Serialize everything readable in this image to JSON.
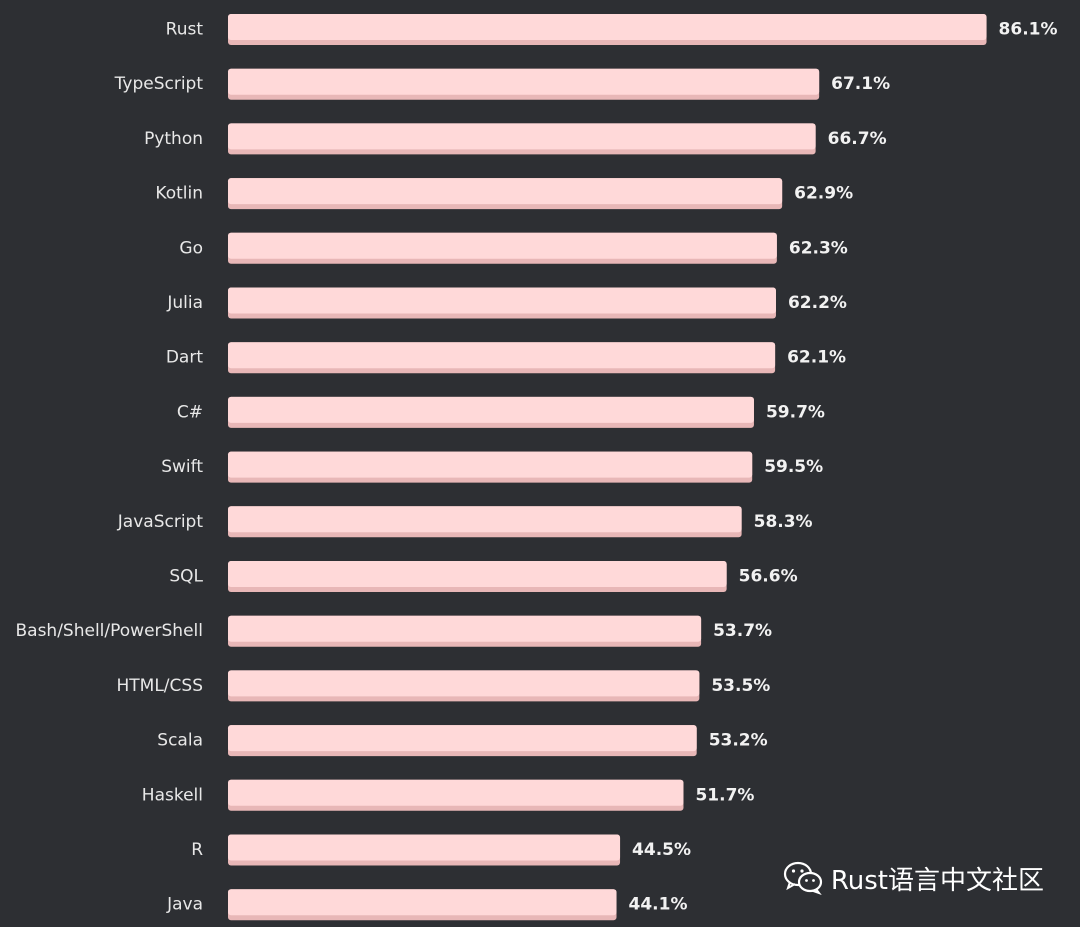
{
  "chart_data": {
    "type": "bar",
    "orientation": "horizontal",
    "categories": [
      "Rust",
      "TypeScript",
      "Python",
      "Kotlin",
      "Go",
      "Julia",
      "Dart",
      "C#",
      "Swift",
      "JavaScript",
      "SQL",
      "Bash/Shell/PowerShell",
      "HTML/CSS",
      "Scala",
      "Haskell",
      "R",
      "Java"
    ],
    "values": [
      86.1,
      67.1,
      66.7,
      62.9,
      62.3,
      62.2,
      62.1,
      59.7,
      59.5,
      58.3,
      56.6,
      53.7,
      53.5,
      53.2,
      51.7,
      44.5,
      44.1
    ],
    "value_labels": [
      "86.1%",
      "67.1%",
      "66.7%",
      "62.9%",
      "62.3%",
      "62.2%",
      "62.1%",
      "59.7%",
      "59.5%",
      "58.3%",
      "56.6%",
      "53.7%",
      "53.5%",
      "53.2%",
      "51.7%",
      "44.5%",
      "44.1%"
    ],
    "xlim": [
      0,
      100
    ],
    "grid": false,
    "bar_color": "#ffd9d9",
    "bar_shadow_color": "#e8b7b7",
    "background_color": "#2d2f33"
  },
  "watermark": {
    "text": "Rust语言中文社区",
    "icon": "wechat-icon"
  }
}
